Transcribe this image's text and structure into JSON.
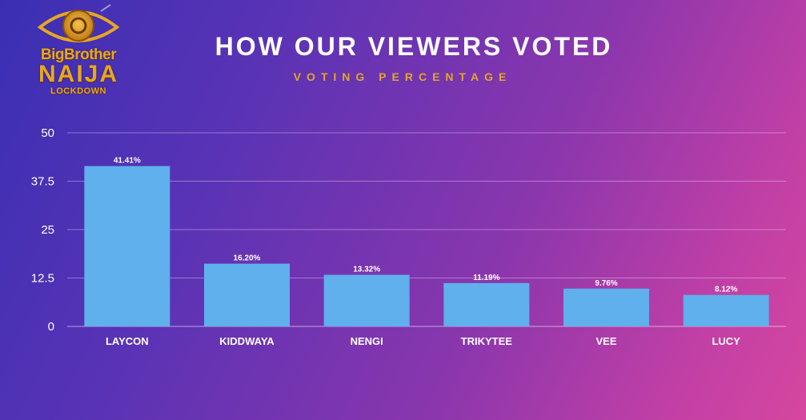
{
  "logo": {
    "line1": "BigBrother",
    "line2": "NAIJA",
    "line3": "LOCKDOWN"
  },
  "colors": {
    "bar": "#5fb0ec",
    "grid": "#ffffff",
    "logo_gold": "#e6a722",
    "subtitle": "#e3a62a"
  },
  "chart_data": {
    "type": "bar",
    "title": "HOW OUR VIEWERS VOTED",
    "subtitle": "VOTING PERCENTAGE",
    "xlabel": "",
    "ylabel": "",
    "categories": [
      "LAYCON",
      "KIDDWAYA",
      "NENGI",
      "TRIKYTEE",
      "VEE",
      "LUCY"
    ],
    "values": [
      41.41,
      16.2,
      13.32,
      11.19,
      9.76,
      8.12
    ],
    "data_labels": [
      "41.41%",
      "16.20%",
      "13.32%",
      "11.19%",
      "9.76%",
      "8.12%"
    ],
    "yticks": [
      0,
      12.5,
      25,
      37.5,
      50
    ],
    "ytick_labels": [
      "0",
      "12.5",
      "25",
      "37.5",
      "50"
    ],
    "ylim": [
      0,
      50
    ],
    "grid": true,
    "legend": "none"
  }
}
